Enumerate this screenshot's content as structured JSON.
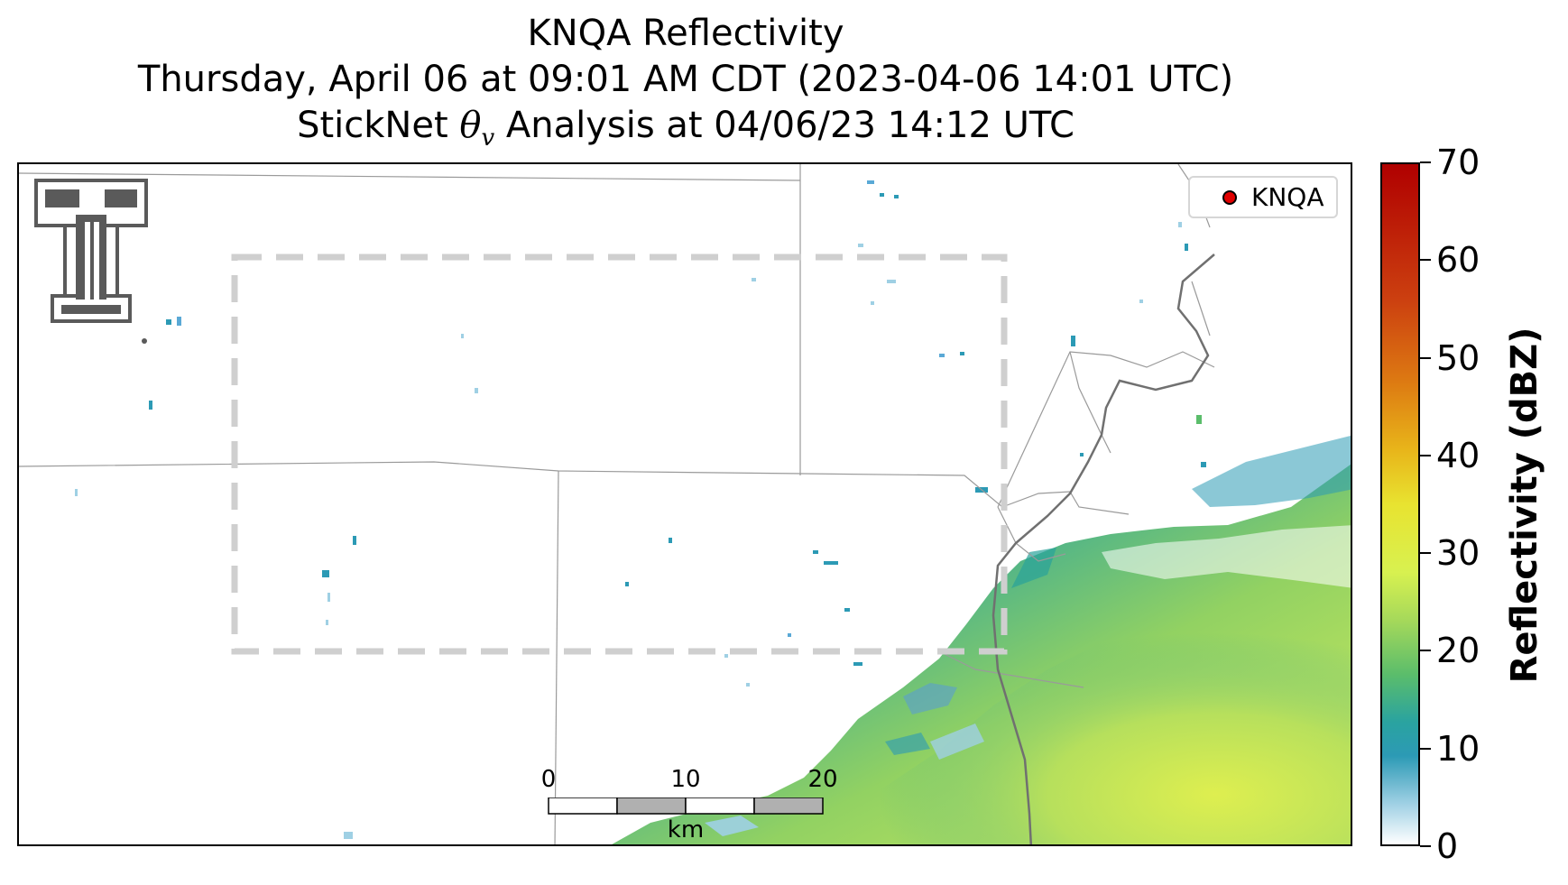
{
  "title": {
    "line1": "KNQA Reflectivity",
    "line2": "Thursday, April 06 at 09:01 AM CDT (2023-04-06 14:01 UTC)",
    "line3_prefix": "StickNet ",
    "line3_symbol": "θ",
    "line3_subscript": "v",
    "line3_suffix": " Analysis at 04/06/23 14:12 UTC"
  },
  "legend": {
    "label": "KNQA",
    "marker_color": "#e00000"
  },
  "colorbar": {
    "label": "Reflectivity (dBZ)",
    "min": 0,
    "max": 70,
    "ticks": [
      "0",
      "10",
      "20",
      "30",
      "40",
      "50",
      "60",
      "70"
    ]
  },
  "scale_bar": {
    "unit": "km",
    "tick_labels": [
      "0",
      "10",
      "20"
    ]
  },
  "logo": {
    "icon": "texas-tech-double-t-logo"
  },
  "colors": {
    "boundary": "#9a9a9a",
    "border_line": "#707070",
    "analysis_box": "#cfcfcf",
    "logo": "#5a5a5a"
  }
}
